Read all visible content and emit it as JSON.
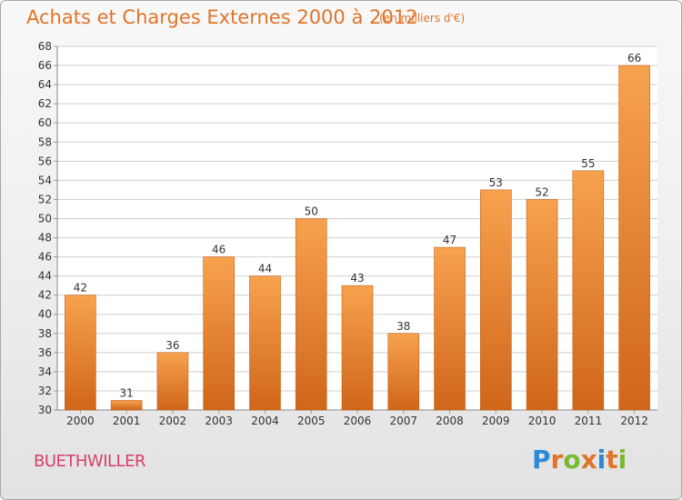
{
  "header": {
    "title": "Achats et Charges Externes 2000 à 2012",
    "unit": "(en milliers d'€)"
  },
  "footer": {
    "commune": "BUETHWILLER",
    "logo_letters": [
      {
        "char": "P",
        "color": "#2a8ad6"
      },
      {
        "char": "r",
        "color": "#e0742a"
      },
      {
        "char": "o",
        "color": "#7ab932"
      },
      {
        "char": "x",
        "color": "#e0742a"
      },
      {
        "char": "i",
        "color": "#2a8ad6"
      },
      {
        "char": "t",
        "color": "#e0742a"
      },
      {
        "char": "i",
        "color": "#7ab932"
      }
    ]
  },
  "colors": {
    "bar_light": "#f7a24e",
    "bar_dark": "#d0661a",
    "grid": "#cfcfcf",
    "axis_text": "#333333"
  },
  "chart_data": {
    "type": "bar",
    "title": "Achats et Charges Externes 2000 à 2012",
    "xlabel": "",
    "ylabel": "",
    "categories": [
      "2000",
      "2001",
      "2002",
      "2003",
      "2004",
      "2005",
      "2006",
      "2007",
      "2008",
      "2009",
      "2010",
      "2011",
      "2012"
    ],
    "values": [
      42,
      31,
      36,
      46,
      44,
      50,
      43,
      38,
      47,
      53,
      52,
      55,
      66
    ],
    "ylim": [
      30,
      68
    ],
    "yticks": [
      30,
      32,
      34,
      36,
      38,
      40,
      42,
      44,
      46,
      48,
      50,
      52,
      54,
      56,
      58,
      60,
      62,
      64,
      66,
      68
    ],
    "grid": true,
    "legend": "none"
  }
}
